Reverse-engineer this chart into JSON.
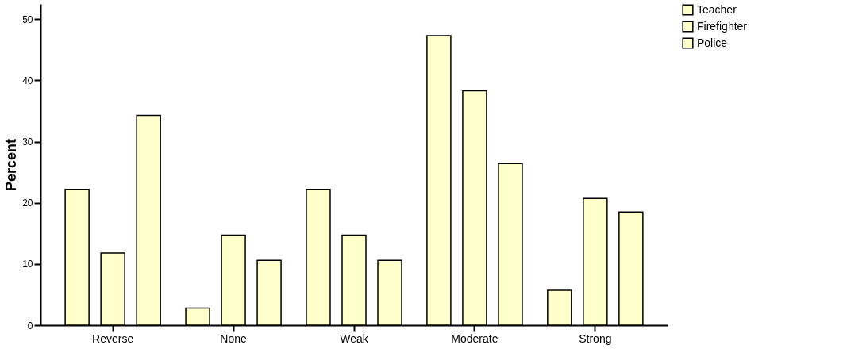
{
  "chart_data": {
    "type": "bar",
    "ylabel": "Percent",
    "categories": [
      "Reverse",
      "None",
      "Weak",
      "Moderate",
      "Strong"
    ],
    "series": [
      {
        "name": "Teacher",
        "color": "#ffffcc",
        "values": [
          22.2,
          2.8,
          22.2,
          47.3,
          5.7
        ]
      },
      {
        "name": "Firefighter",
        "color": "#ffffcc",
        "values": [
          11.8,
          14.7,
          14.7,
          38.3,
          20.7
        ]
      },
      {
        "name": "Police",
        "color": "#ffffcc",
        "values": [
          34.3,
          10.6,
          10.6,
          26.4,
          18.5
        ]
      }
    ],
    "ylim": [
      0,
      52.5
    ],
    "yticks": [
      0,
      10,
      20,
      30,
      40,
      50
    ],
    "grid": false,
    "legend": "top right"
  }
}
